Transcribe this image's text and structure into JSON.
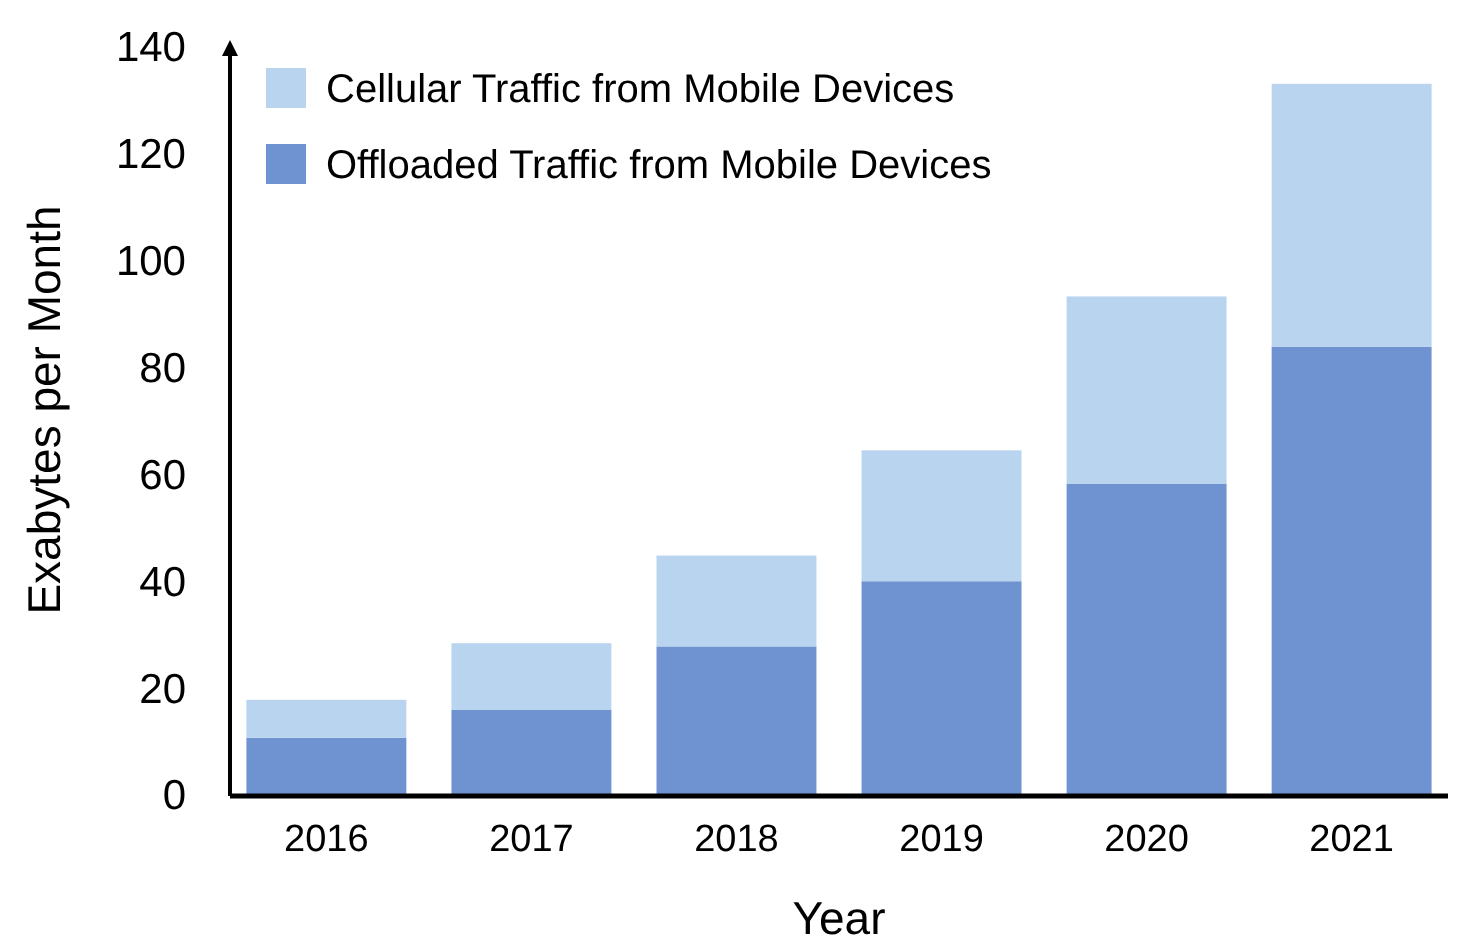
{
  "chart_data": {
    "type": "bar",
    "stacked": true,
    "xlabel": "Year",
    "ylabel": "Exabytes per Month",
    "categories": [
      "2016",
      "2017",
      "2018",
      "2019",
      "2020",
      "2021"
    ],
    "series": [
      {
        "name": "Offloaded Traffic from Mobile Devices",
        "color": "#6f93d0",
        "values": [
          10.9,
          16.1,
          28.0,
          40.2,
          58.4,
          84.1
        ]
      },
      {
        "name": "Cellular Traffic from Mobile Devices",
        "color": "#b9d4ee",
        "values": [
          7.1,
          12.5,
          17.0,
          24.5,
          35.1,
          49.2
        ]
      }
    ],
    "ylim": [
      0,
      140
    ],
    "yticks": [
      0,
      20,
      40,
      60,
      80,
      100,
      120,
      140
    ],
    "grid": false,
    "legend": "top left"
  }
}
